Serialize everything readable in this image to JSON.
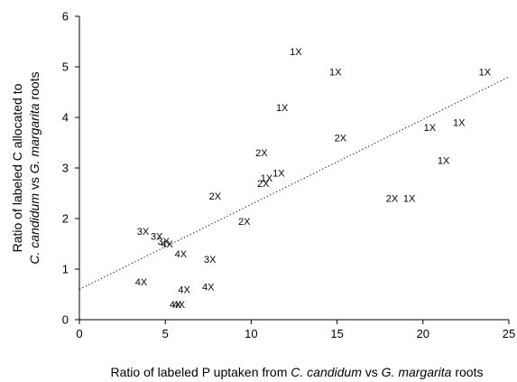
{
  "chart_data": {
    "type": "scatter",
    "xlabel": {
      "parts": [
        {
          "text": "Ratio of labeled P uptaken from ",
          "italic": false
        },
        {
          "text": "C. candidum",
          "italic": true
        },
        {
          "text": " vs ",
          "italic": false
        },
        {
          "text": "G. margarita",
          "italic": true
        },
        {
          "text": " roots",
          "italic": false
        }
      ]
    },
    "ylabel": {
      "line1": "Ratio of labeled C allocated to",
      "line2_parts": [
        {
          "text": "C. candidum",
          "italic": true
        },
        {
          "text": " vs ",
          "italic": false
        },
        {
          "text": "G. margarita",
          "italic": true
        },
        {
          "text": " roots",
          "italic": false
        }
      ]
    },
    "xlim": [
      0,
      25
    ],
    "ylim": [
      0,
      6
    ],
    "xticks": [
      "0",
      "5",
      "10",
      "15",
      "20",
      "25"
    ],
    "yticks": [
      "0",
      "1",
      "2",
      "3",
      "4",
      "5",
      "6"
    ],
    "grid": false,
    "legend": "none",
    "trendline": {
      "style": "dotted",
      "x": [
        0,
        25
      ],
      "y": [
        0.6,
        4.8
      ]
    },
    "points": [
      {
        "x": 12.6,
        "y": 5.3,
        "label": "1X"
      },
      {
        "x": 14.9,
        "y": 4.9,
        "label": "1X"
      },
      {
        "x": 23.6,
        "y": 4.9,
        "label": "1X"
      },
      {
        "x": 11.8,
        "y": 4.2,
        "label": "1X"
      },
      {
        "x": 20.4,
        "y": 3.8,
        "label": "1X"
      },
      {
        "x": 22.1,
        "y": 3.9,
        "label": "1X"
      },
      {
        "x": 15.2,
        "y": 3.6,
        "label": "2X"
      },
      {
        "x": 10.6,
        "y": 3.3,
        "label": "2X"
      },
      {
        "x": 21.2,
        "y": 3.15,
        "label": "1X"
      },
      {
        "x": 11.6,
        "y": 2.9,
        "label": "1X"
      },
      {
        "x": 10.9,
        "y": 2.8,
        "label": "1X"
      },
      {
        "x": 10.7,
        "y": 2.7,
        "label": "2X"
      },
      {
        "x": 7.9,
        "y": 2.45,
        "label": "2X"
      },
      {
        "x": 18.2,
        "y": 2.4,
        "label": "2X"
      },
      {
        "x": 19.2,
        "y": 2.4,
        "label": "1X"
      },
      {
        "x": 9.6,
        "y": 1.95,
        "label": "2X"
      },
      {
        "x": 3.7,
        "y": 1.75,
        "label": "3X"
      },
      {
        "x": 4.5,
        "y": 1.65,
        "label": "3X"
      },
      {
        "x": 4.9,
        "y": 1.55,
        "label": "3X"
      },
      {
        "x": 5.1,
        "y": 1.5,
        "label": "4X"
      },
      {
        "x": 5.9,
        "y": 1.3,
        "label": "4X"
      },
      {
        "x": 7.6,
        "y": 1.2,
        "label": "3X"
      },
      {
        "x": 3.6,
        "y": 0.75,
        "label": "4X"
      },
      {
        "x": 6.1,
        "y": 0.6,
        "label": "4X"
      },
      {
        "x": 7.5,
        "y": 0.65,
        "label": "4X"
      },
      {
        "x": 5.6,
        "y": 0.3,
        "label": "4X"
      },
      {
        "x": 5.8,
        "y": 0.3,
        "label": "4X"
      }
    ]
  }
}
